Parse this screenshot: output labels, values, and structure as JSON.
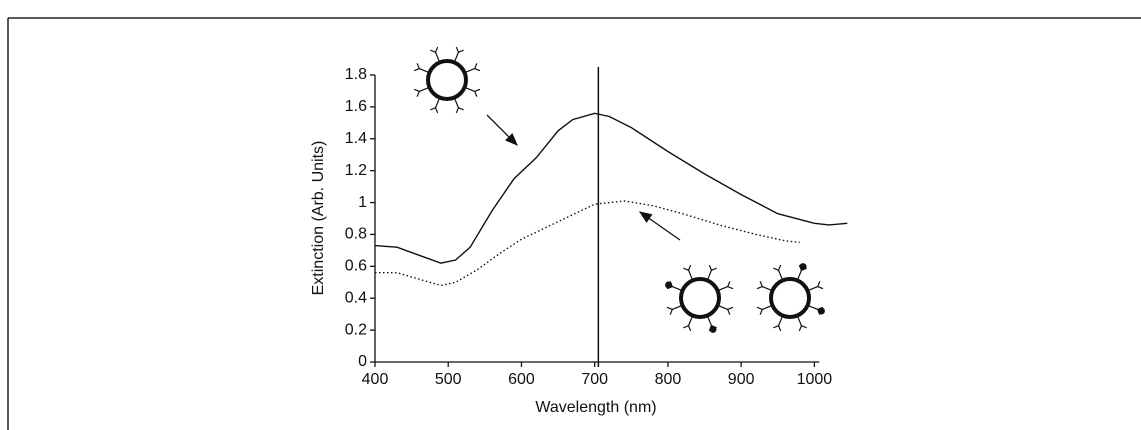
{
  "chart_data": {
    "type": "line",
    "x_label": "Wavelength (nm)",
    "y_label": "Extinction (Arb. Units)",
    "xlim": [
      400,
      1050
    ],
    "ylim": [
      0,
      1.8
    ],
    "xticks": [
      400,
      500,
      600,
      700,
      800,
      900,
      1000
    ],
    "yticks": [
      0,
      0.2,
      0.4,
      0.6,
      0.8,
      1,
      1.2,
      1.4,
      1.6,
      1.8
    ],
    "vline": 705,
    "series": [
      {
        "color": "#111111",
        "style": "solid",
        "x": [
          400,
          430,
          460,
          490,
          510,
          530,
          560,
          590,
          620,
          650,
          670,
          700,
          720,
          750,
          800,
          850,
          900,
          950,
          1000,
          1020,
          1045
        ],
        "values": [
          0.73,
          0.72,
          0.67,
          0.62,
          0.64,
          0.72,
          0.95,
          1.15,
          1.28,
          1.45,
          1.52,
          1.56,
          1.54,
          1.47,
          1.32,
          1.18,
          1.05,
          0.93,
          0.87,
          0.86,
          0.87
        ]
      },
      {
        "color": "#111111",
        "style": "dotted",
        "x": [
          400,
          430,
          460,
          490,
          510,
          540,
          570,
          600,
          650,
          700,
          740,
          780,
          820,
          870,
          920,
          960,
          980
        ],
        "values": [
          0.56,
          0.56,
          0.52,
          0.48,
          0.5,
          0.58,
          0.68,
          0.77,
          0.88,
          0.99,
          1.01,
          0.98,
          0.93,
          0.86,
          0.8,
          0.76,
          0.75
        ]
      }
    ]
  }
}
